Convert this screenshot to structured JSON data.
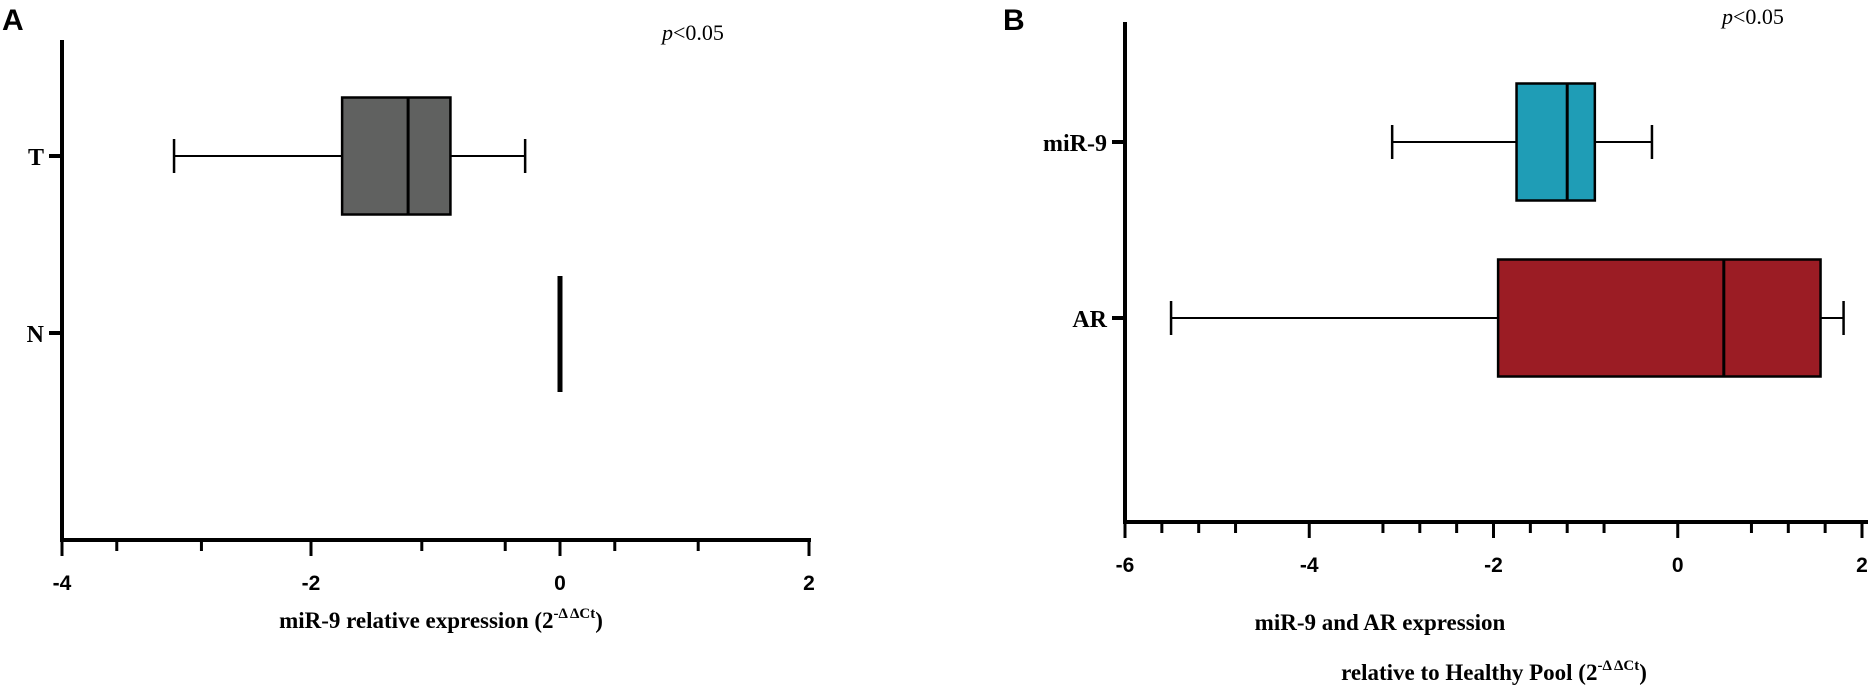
{
  "chart_data": [
    {
      "type": "boxplot",
      "orientation": "horizontal",
      "panel_label": "A",
      "annotation": {
        "p": "p",
        "rest": "<0.05"
      },
      "xlabel": {
        "main": "miR-9 relative expression (2",
        "sup": "-Δ ΔCt",
        "close": ")"
      },
      "xlim": [
        -4,
        2
      ],
      "xticks": [
        -4,
        -2,
        0,
        2
      ],
      "xtick_labels": [
        "-4",
        "-2",
        "0",
        "2"
      ],
      "minor_ticks": [
        -3.56,
        -2.88,
        -1.11,
        -0.44,
        0.44,
        1.11
      ],
      "categories": [
        "T",
        "N"
      ],
      "series": [
        {
          "category": "T",
          "min": -3.1,
          "q1": -1.75,
          "median": -1.22,
          "q3": -0.88,
          "max": -0.28,
          "color": "#606160"
        },
        {
          "category": "N",
          "min": 0,
          "q1": 0,
          "median": 0,
          "q3": 0,
          "max": 0,
          "color": "#000000"
        }
      ]
    },
    {
      "type": "boxplot",
      "orientation": "horizontal",
      "panel_label": "B",
      "annotation": {
        "p": "p",
        "rest": "<0.05"
      },
      "xlabel": {
        "line1": "miR-9 and AR expression",
        "main": "relative to Healthy Pool (2",
        "sup": "-Δ ΔCt",
        "close": ")"
      },
      "xlim": [
        -6,
        2
      ],
      "xticks": [
        -6,
        -4,
        -2,
        0,
        2
      ],
      "xtick_labels": [
        "-6",
        "-4",
        "-2",
        "0",
        "2"
      ],
      "minor_ticks": [
        -5.6,
        -5.2,
        -4.8,
        -3.2,
        -2.8,
        -2.4,
        -1.6,
        -1.2,
        -0.8,
        0.8,
        1.2,
        1.6
      ],
      "categories": [
        "miR-9",
        "AR"
      ],
      "series": [
        {
          "category": "miR-9",
          "min": -3.1,
          "q1": -1.75,
          "median": -1.2,
          "q3": -0.9,
          "max": -0.28,
          "color": "#1f9db6"
        },
        {
          "category": "AR",
          "min": -5.5,
          "q1": -1.95,
          "median": 0.5,
          "q3": 1.55,
          "max": 1.8,
          "color": "#9b1c24"
        }
      ]
    }
  ]
}
